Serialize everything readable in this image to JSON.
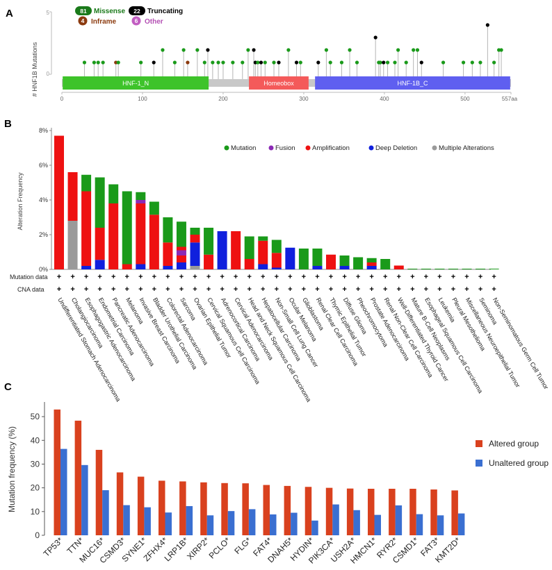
{
  "panel_a": {
    "label": "A",
    "ylabel": "# HNF1B Mutations",
    "y_max_tick": "5",
    "y_min_tick": "0",
    "legend": [
      {
        "count": "81",
        "label": "Missense",
        "color": "#1a7a1a",
        "text_color": "#1a7a1a"
      },
      {
        "count": "22",
        "label": "Truncating",
        "color": "#000000",
        "text_color": "#000000"
      },
      {
        "count": "4",
        "label": "Inframe",
        "color": "#8b3a0e",
        "text_color": "#8b3a0e"
      },
      {
        "count": "6",
        "label": "Other",
        "color": "#c25ec2",
        "text_color": "#b34fb3"
      }
    ],
    "domains": [
      {
        "label": "HNF-1_N",
        "start": 1,
        "end": 182,
        "color": "#3ec32a"
      },
      {
        "label": "Homeobox",
        "start": 232,
        "end": 306,
        "color": "#f45a5a"
      },
      {
        "label": "HNF-1B_C",
        "start": 314,
        "end": 556,
        "color": "#5f5ff0"
      }
    ],
    "protein_length": 557,
    "length_label": "557aa",
    "x_ticks": [
      "0",
      "100",
      "200",
      "300",
      "400",
      "500"
    ],
    "lollipops": [
      {
        "pos": 28,
        "count": 1,
        "type": "missense"
      },
      {
        "pos": 40,
        "count": 1,
        "type": "missense"
      },
      {
        "pos": 45,
        "count": 1,
        "type": "missense"
      },
      {
        "pos": 51,
        "count": 1,
        "type": "missense"
      },
      {
        "pos": 67,
        "count": 1,
        "type": "inframe"
      },
      {
        "pos": 70,
        "count": 1,
        "type": "missense"
      },
      {
        "pos": 98,
        "count": 1,
        "type": "missense"
      },
      {
        "pos": 114,
        "count": 1,
        "type": "truncating"
      },
      {
        "pos": 125,
        "count": 2,
        "type": "missense"
      },
      {
        "pos": 140,
        "count": 1,
        "type": "missense"
      },
      {
        "pos": 151,
        "count": 2,
        "type": "missense"
      },
      {
        "pos": 156,
        "count": 1,
        "type": "inframe"
      },
      {
        "pos": 168,
        "count": 2,
        "type": "missense"
      },
      {
        "pos": 177,
        "count": 1,
        "type": "missense"
      },
      {
        "pos": 181,
        "count": 2,
        "type": "truncating"
      },
      {
        "pos": 187,
        "count": 1,
        "type": "missense"
      },
      {
        "pos": 194,
        "count": 1,
        "type": "missense"
      },
      {
        "pos": 200,
        "count": 1,
        "type": "missense"
      },
      {
        "pos": 212,
        "count": 1,
        "type": "missense"
      },
      {
        "pos": 224,
        "count": 1,
        "type": "missense"
      },
      {
        "pos": 231,
        "count": 2,
        "type": "missense"
      },
      {
        "pos": 238,
        "count": 2,
        "type": "truncating"
      },
      {
        "pos": 240,
        "count": 1,
        "type": "truncating"
      },
      {
        "pos": 243,
        "count": 1,
        "type": "missense"
      },
      {
        "pos": 247,
        "count": 1,
        "type": "truncating"
      },
      {
        "pos": 252,
        "count": 1,
        "type": "missense"
      },
      {
        "pos": 263,
        "count": 1,
        "type": "missense"
      },
      {
        "pos": 269,
        "count": 1,
        "type": "truncating"
      },
      {
        "pos": 281,
        "count": 2,
        "type": "missense"
      },
      {
        "pos": 291,
        "count": 1,
        "type": "truncating"
      },
      {
        "pos": 296,
        "count": 1,
        "type": "missense"
      },
      {
        "pos": 318,
        "count": 1,
        "type": "truncating"
      },
      {
        "pos": 328,
        "count": 2,
        "type": "missense"
      },
      {
        "pos": 333,
        "count": 1,
        "type": "missense"
      },
      {
        "pos": 347,
        "count": 1,
        "type": "missense"
      },
      {
        "pos": 357,
        "count": 2,
        "type": "missense"
      },
      {
        "pos": 366,
        "count": 1,
        "type": "missense"
      },
      {
        "pos": 389,
        "count": 3,
        "type": "truncating"
      },
      {
        "pos": 393,
        "count": 1,
        "type": "missense"
      },
      {
        "pos": 395,
        "count": 1,
        "type": "missense"
      },
      {
        "pos": 399,
        "count": 1,
        "type": "truncating"
      },
      {
        "pos": 404,
        "count": 1,
        "type": "missense"
      },
      {
        "pos": 413,
        "count": 1,
        "type": "missense"
      },
      {
        "pos": 417,
        "count": 2,
        "type": "missense"
      },
      {
        "pos": 427,
        "count": 1,
        "type": "missense"
      },
      {
        "pos": 436,
        "count": 2,
        "type": "missense"
      },
      {
        "pos": 441,
        "count": 2,
        "type": "missense"
      },
      {
        "pos": 446,
        "count": 1,
        "type": "truncating"
      },
      {
        "pos": 473,
        "count": 1,
        "type": "missense"
      },
      {
        "pos": 498,
        "count": 1,
        "type": "missense"
      },
      {
        "pos": 509,
        "count": 1,
        "type": "missense"
      },
      {
        "pos": 519,
        "count": 1,
        "type": "missense"
      },
      {
        "pos": 528,
        "count": 4,
        "type": "truncating"
      },
      {
        "pos": 536,
        "count": 1,
        "type": "missense"
      },
      {
        "pos": 542,
        "count": 2,
        "type": "missense"
      },
      {
        "pos": 545,
        "count": 2,
        "type": "missense"
      }
    ]
  },
  "panel_b": {
    "label": "B",
    "ylabel": "Alteration Frequency",
    "y_ticks": [
      "0%",
      "2%",
      "4%",
      "6%",
      "8%"
    ],
    "legend": [
      {
        "label": "Mutation",
        "color": "#1a9a1a"
      },
      {
        "label": "Fusion",
        "color": "#8b2ab5"
      },
      {
        "label": "Amplification",
        "color": "#ee1111"
      },
      {
        "label": "Deep Deletion",
        "color": "#1020dd"
      },
      {
        "label": "Multiple Alterations",
        "color": "#9a9a9a"
      }
    ],
    "row_labels": [
      "Mutation data",
      "CNA data"
    ],
    "row_symbol": "+",
    "cancers": [
      {
        "name": "Undifferentiated Stomach Adenocarcinoma",
        "segs": {
          "amp": 7.7
        }
      },
      {
        "name": "Cholangiocarcinoma",
        "segs": {
          "multi": 2.8,
          "amp": 2.8
        }
      },
      {
        "name": "Esophagogastric Adenocarcinoma",
        "segs": {
          "del": 0.2,
          "amp": 4.3,
          "mut": 0.95
        }
      },
      {
        "name": "Endometrial Carcinoma",
        "segs": {
          "del": 0.55,
          "amp": 1.85,
          "mut": 2.9
        }
      },
      {
        "name": "Pancreatic Adenocarcinoma",
        "segs": {
          "amp": 3.8,
          "mut": 1.1
        }
      },
      {
        "name": "Melanoma",
        "segs": {
          "amp": 0.3,
          "mut": 4.2
        }
      },
      {
        "name": "Invasive Breast Carcinoma",
        "segs": {
          "del": 0.3,
          "amp": 3.5,
          "fusion": 0.2,
          "mut": 0.45
        }
      },
      {
        "name": "Bladder Urothelial Carcinoma",
        "segs": {
          "amp": 3.15,
          "mut": 0.75
        }
      },
      {
        "name": "Colorectal Adenocarcinoma",
        "segs": {
          "del": 0.2,
          "amp": 1.35,
          "mut": 1.45
        }
      },
      {
        "name": "Sarcoma",
        "segs": {
          "del": 0.4,
          "amp": 0.4,
          "fusion": 0.3,
          "amp2": 0.2,
          "mut": 1.45
        }
      },
      {
        "name": "Ovarian Epithelial Tumor",
        "segs": {
          "multi": 0.2,
          "del": 1.35,
          "amp": 0.45,
          "mut": 0.4
        }
      },
      {
        "name": "Cervical Squamous Cell Carcinoma",
        "segs": {
          "amp": 0.85,
          "mut": 1.55
        }
      },
      {
        "name": "Adrenocortical Carcinoma",
        "segs": {
          "del": 2.2
        }
      },
      {
        "name": "Cervical Adenocarcinoma",
        "segs": {
          "amp": 2.2
        }
      },
      {
        "name": "Head and Neck Squamous Cell Carcinoma",
        "segs": {
          "amp": 0.6,
          "mut": 1.3
        }
      },
      {
        "name": "Hepatocellular Carcinoma",
        "segs": {
          "del": 0.3,
          "amp": 1.35,
          "mut": 0.25
        }
      },
      {
        "name": "Non-Small Cell Lung Cancer",
        "segs": {
          "del": 0.1,
          "amp": 0.85,
          "mut": 0.75
        }
      },
      {
        "name": "Ocular Melanoma",
        "segs": {
          "del": 1.25
        }
      },
      {
        "name": "Glioblastoma",
        "segs": {
          "mut": 1.2
        }
      },
      {
        "name": "Renal Clear Cell Carcinoma",
        "segs": {
          "del": 0.2,
          "mut": 1.0
        }
      },
      {
        "name": "Thymic Epithelial Tumor",
        "segs": {
          "amp": 0.85
        }
      },
      {
        "name": "Diffuse Glioma",
        "segs": {
          "del": 0.2,
          "mut": 0.6
        }
      },
      {
        "name": "Pheochromocytoma",
        "segs": {
          "mut": 0.7
        }
      },
      {
        "name": "Prostate Adenocarcinoma",
        "segs": {
          "del": 0.2,
          "amp": 0.2,
          "mut": 0.25
        }
      },
      {
        "name": "Renal Non-Clear Cell Carcinoma",
        "segs": {
          "mut": 0.6
        }
      },
      {
        "name": "Well-Differentiated Thyroid Cancer",
        "segs": {
          "amp": 0.22
        }
      },
      {
        "name": "Mature B-Cell Neoplasms",
        "segs": {
          "mut": 0.04
        }
      },
      {
        "name": "Esophageal Squamous Cell Carcinoma",
        "segs": {
          "mut": 0.04
        }
      },
      {
        "name": "Leukemia",
        "segs": {
          "mut": 0.04
        }
      },
      {
        "name": "Pleural Mesothelioma",
        "segs": {
          "mut": 0.04
        }
      },
      {
        "name": "Miscellaneous Neuroepithelial Tumor",
        "segs": {
          "mut": 0.04
        }
      },
      {
        "name": "Seminoma",
        "segs": {
          "mut": 0.04
        }
      },
      {
        "name": "Non-Seminomatous Germ Cell Tumor",
        "segs": {
          "mut": 0.04
        }
      }
    ]
  },
  "chart_data": {
    "type": "bar",
    "title": "",
    "panel_label": "C",
    "xlabel": "",
    "ylabel": "Mutation frequency (%)",
    "ylim": [
      0,
      55
    ],
    "y_ticks": [
      "0",
      "10",
      "20",
      "30",
      "40",
      "50"
    ],
    "categories": [
      "TP53*",
      "TTN*",
      "MUC16*",
      "CSMD3*",
      "SYNE1*",
      "ZFHX4*",
      "LRP1B*",
      "XIRP2*",
      "PCLO*",
      "FLG*",
      "FAT4*",
      "DNAH5*",
      "HYDIN*",
      "PIK3CA*",
      "USH2A*",
      "HMCN1*",
      "RYR2*",
      "CSMD1*",
      "FAT3*",
      "KMT2D*"
    ],
    "series": [
      {
        "name": "Altered group",
        "color": "#d9411e",
        "values": [
          53,
          48.3,
          36,
          26.5,
          24.7,
          23,
          22.7,
          22.3,
          22,
          21.9,
          21.2,
          20.8,
          20.4,
          20,
          19.7,
          19.6,
          19.6,
          19.6,
          19.3,
          18.9
        ]
      },
      {
        "name": "Unaltered group",
        "color": "#3a6fd1",
        "values": [
          36.4,
          29.6,
          19,
          12.7,
          11.8,
          9.6,
          12.3,
          8.4,
          10.2,
          11,
          8.8,
          9.5,
          6.2,
          13,
          10.6,
          8.6,
          12.6,
          8.9,
          8.4,
          9.2
        ]
      }
    ]
  }
}
